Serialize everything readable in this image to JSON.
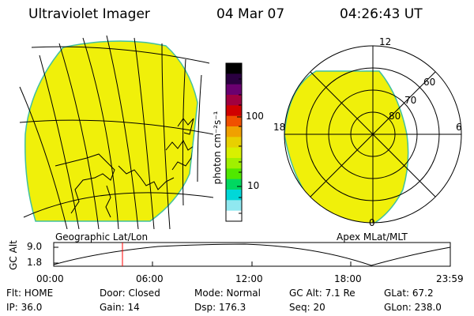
{
  "header": {
    "instrument": "Ultraviolet Imager",
    "date": "04 Mar 07",
    "time": "04:26:43 UT"
  },
  "left_map": {
    "label": "Geographic Lat/Lon",
    "fill_color": "#f0f00a"
  },
  "right_map": {
    "label": "Apex MLat/MLT",
    "fill_color": "#f0f00a",
    "mlt_labels": [
      "12",
      "18",
      "6",
      "0"
    ],
    "lat_labels": [
      "60",
      "70",
      "80"
    ]
  },
  "colorbar": {
    "axis_label": "photon cm⁻²s⁻¹",
    "ticks": [
      "100",
      "10"
    ],
    "colors": [
      "#000000",
      "#2a0040",
      "#6a0070",
      "#a00040",
      "#d00000",
      "#f05000",
      "#f0a000",
      "#e8d000",
      "#d8f000",
      "#a0f000",
      "#50e800",
      "#00d860",
      "#00d8d8",
      "#90e8f0",
      "#ffffff"
    ]
  },
  "altitude_plot": {
    "y_label": "GC Alt",
    "y_ticks": [
      "9.0",
      "1.8"
    ],
    "x_ticks": [
      "00:00",
      "06:00",
      "12:00",
      "18:00",
      "23:59"
    ],
    "marker_color": "#ff0000"
  },
  "info": {
    "flt": "Flt: HOME",
    "door": "Door: Closed",
    "mode": "Mode: Normal",
    "gc_alt": "GC Alt: 7.1 Re",
    "glat": "GLat:  67.2",
    "ip": "IP: 36.0",
    "gain": "Gain: 14",
    "dsp": "Dsp:  176.3",
    "seq": "Seq: 20",
    "glon": "GLon: 238.0"
  }
}
